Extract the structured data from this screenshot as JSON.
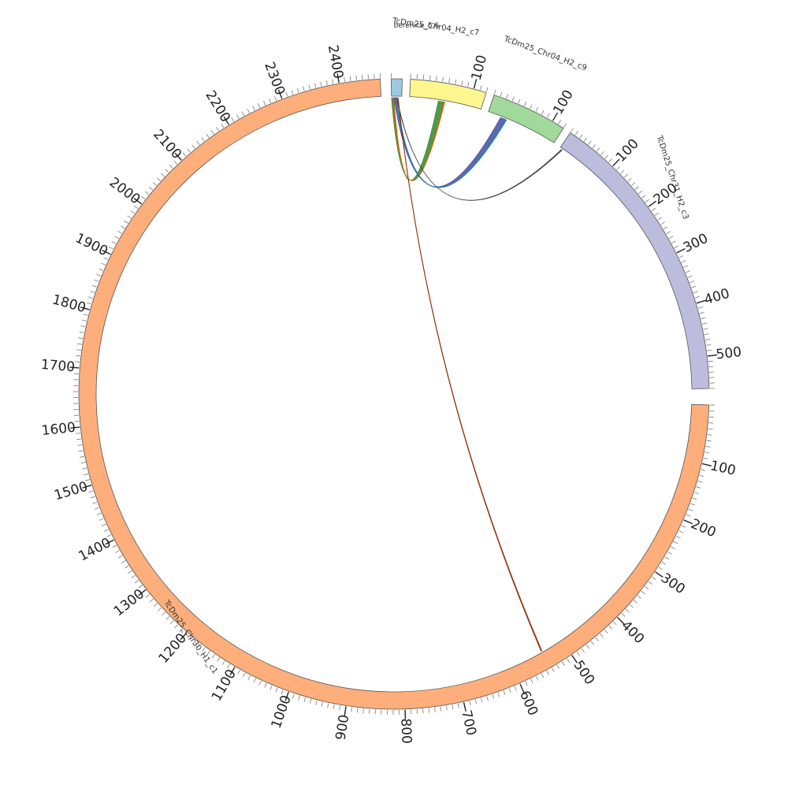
{
  "diagram": {
    "type": "circos",
    "tick_step_small": 10,
    "tick_step_label": 100,
    "segments": [
      {
        "id": "berenice",
        "label": "berenice_5.6",
        "length": 8,
        "color": "#9ecae1",
        "label_ticks": false
      },
      {
        "id": "chr04c7",
        "label": "TcDm25_Chr04_H2_c7",
        "length": 120,
        "color": "#fff68f",
        "label_ticks": true
      },
      {
        "id": "chr04c9",
        "label": "TcDm25_Chr04_H2_c9",
        "length": 120,
        "color": "#a1d99b",
        "label_ticks": true
      },
      {
        "id": "chr31",
        "label": "TcDm25_Chr31_H2_c3",
        "length": 560,
        "color": "#bcbddc",
        "label_ticks": true
      },
      {
        "id": "chr30",
        "label": "TcDm25_Chr30_H1_c1",
        "length": 2470,
        "color": "#fdae7b",
        "label_ticks": true
      }
    ],
    "links": [
      {
        "name": "link-berenice-chr04c7-green",
        "a": "berenice",
        "a_start": 0,
        "a_end": 2,
        "b": "chr04c7",
        "b_start": 48,
        "b_end": 58,
        "color": "#2b8a2b"
      },
      {
        "name": "link-berenice-chr04c7-orange",
        "a": "berenice",
        "a_start": 1,
        "a_end": 2,
        "b": "chr04c7",
        "b_start": 57,
        "b_end": 59,
        "color": "#d95f02"
      },
      {
        "name": "link-berenice-chr04c9-blue",
        "a": "berenice",
        "a_start": 2,
        "a_end": 4,
        "b": "chr04c9",
        "b_start": 22,
        "b_end": 32,
        "color": "#4a4a9c"
      },
      {
        "name": "link-berenice-chr04c9-teal",
        "a": "berenice",
        "a_start": 3,
        "a_end": 4,
        "b": "chr04c9",
        "b_start": 30,
        "b_end": 33,
        "color": "#2c7fb8"
      },
      {
        "name": "link-berenice-chr31-thin",
        "a": "berenice",
        "a_start": 4,
        "a_end": 4.3,
        "b": "chr31",
        "b_start": 4,
        "b_end": 6,
        "color": "#333333"
      },
      {
        "name": "link-berenice-chr30-thin",
        "a": "berenice",
        "a_start": 5,
        "a_end": 5.3,
        "b": "chr30",
        "b_start": 540,
        "b_end": 542,
        "color": "#8c2d04"
      }
    ]
  }
}
